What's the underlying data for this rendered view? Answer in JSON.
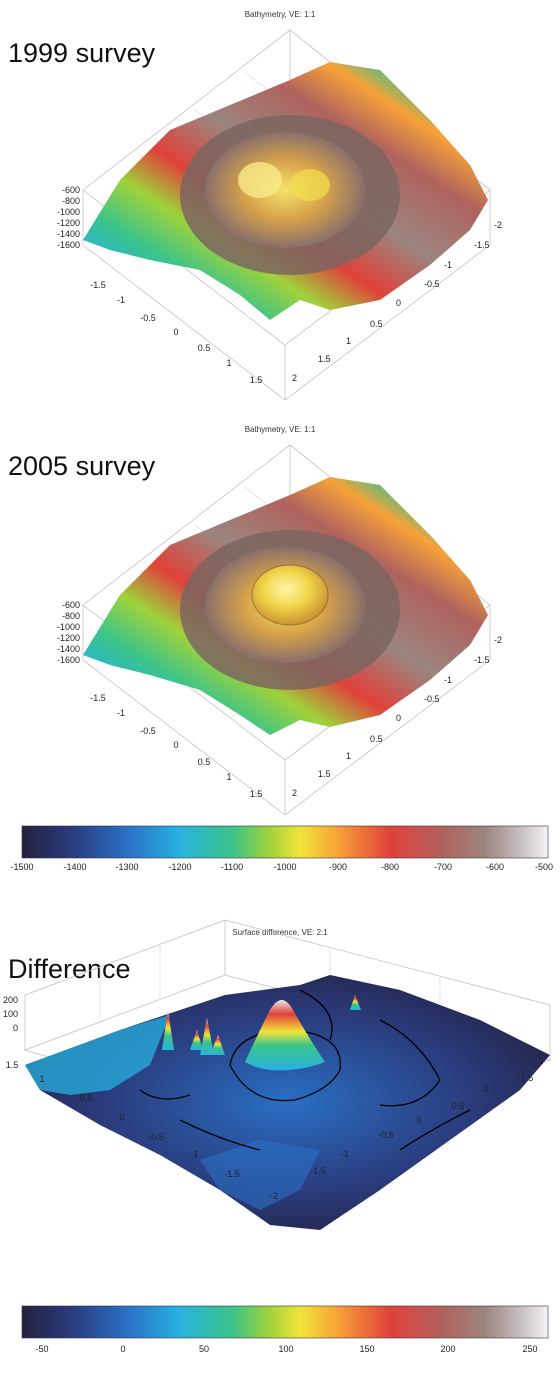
{
  "panels": [
    {
      "label": "1999 survey",
      "title": "Bathymetry, VE: 1:1",
      "z_ticks": [
        "-600",
        "-800",
        "-1000",
        "-1200",
        "-1400",
        "-1600"
      ],
      "left_axis_ticks": [
        "-1.5",
        "-1",
        "-0.5",
        "0",
        "0.5",
        "1",
        "1.5"
      ],
      "right_axis_ticks": [
        "2",
        "1.5",
        "1",
        "0.5",
        "0",
        "-0.5",
        "-1",
        "-1.5",
        "-2"
      ]
    },
    {
      "label": "2005 survey",
      "title": "Bathymetry, VE: 1:1",
      "z_ticks": [
        "-600",
        "-800",
        "-1000",
        "-1200",
        "-1400",
        "-1600"
      ],
      "left_axis_ticks": [
        "-1.5",
        "-1",
        "-0.5",
        "0",
        "0.5",
        "1",
        "1.5"
      ],
      "right_axis_ticks": [
        "2",
        "1.5",
        "1",
        "0.5",
        "0",
        "-0.5",
        "-1",
        "-1.5",
        "-2"
      ]
    },
    {
      "label": "Difference",
      "title": "Surface difference, VE: 2:1",
      "z_ticks": [
        "200",
        "100",
        "0"
      ],
      "left_axis_ticks": [
        "1.5",
        "1",
        "0.5",
        "0",
        "-0.5",
        "-1",
        "-1.5"
      ],
      "right_axis_ticks": [
        "-2",
        "-1.5",
        "-1",
        "-0.5",
        "0",
        "0.5",
        "1",
        "1.5",
        "2"
      ]
    }
  ],
  "colorbars": [
    {
      "name": "bathymetry-colorbar",
      "ticks": [
        "-1500",
        "-1400",
        "-1300",
        "-1200",
        "-1100",
        "-1000",
        "-900",
        "-800",
        "-700",
        "-600",
        "-500"
      ]
    },
    {
      "name": "difference-colorbar",
      "ticks": [
        "-50",
        "0",
        "50",
        "100",
        "150",
        "200",
        "250"
      ]
    }
  ],
  "colormap": [
    "#23213f",
    "#2a3a7a",
    "#2a6fc4",
    "#27b2e0",
    "#3cc48a",
    "#9fd23a",
    "#f2e43a",
    "#f7a238",
    "#e0413a",
    "#b0625e",
    "#9c857f",
    "#c8c0c4",
    "#f4f4f8"
  ]
}
